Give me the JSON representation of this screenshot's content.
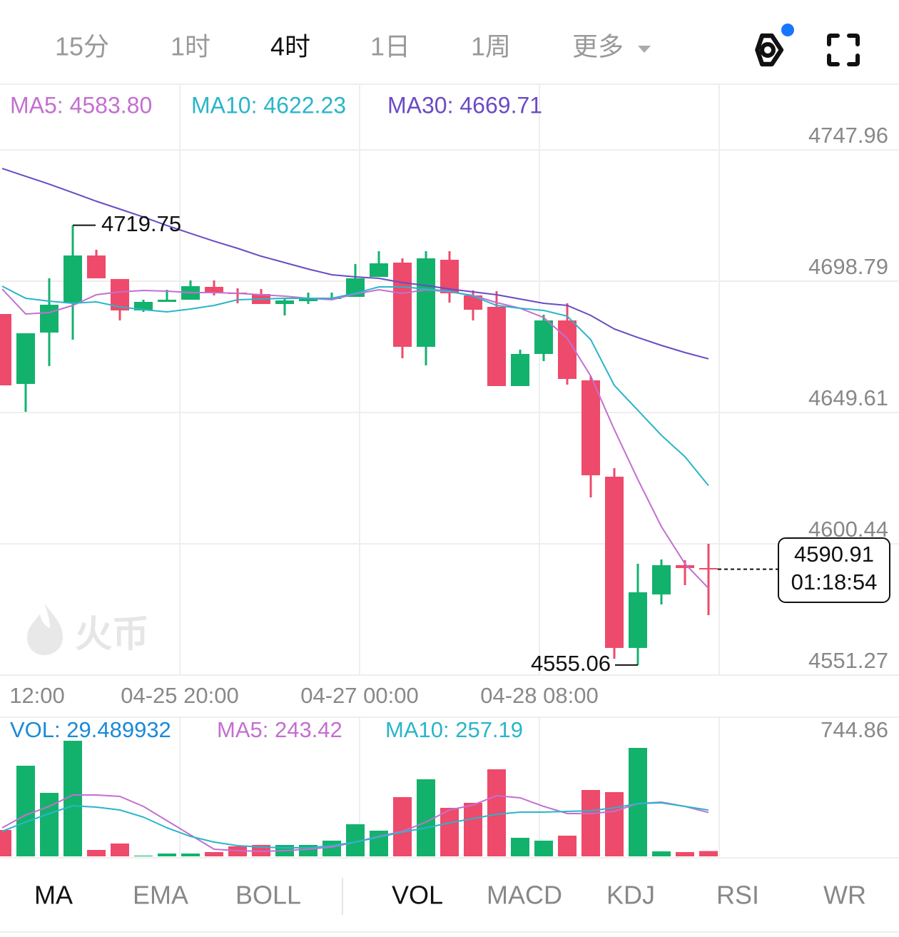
{
  "tabs": [
    {
      "label": "15分",
      "active": false
    },
    {
      "label": "1时",
      "active": false
    },
    {
      "label": "4时",
      "active": true
    },
    {
      "label": "1日",
      "active": false
    },
    {
      "label": "1周",
      "active": false
    },
    {
      "label": "更多",
      "active": false
    }
  ],
  "chart_data": [
    {
      "type": "candlestick",
      "up_color": "#12b26d",
      "down_color": "#ee4a6b",
      "grid": true,
      "ylim": [
        4551.27,
        4772.55
      ],
      "yticks": [
        4747.96,
        4698.79,
        4649.61,
        4600.44,
        4551.27
      ],
      "xtick_labels": [
        "12:00",
        "04-25 20:00",
        "04-27 00:00",
        "04-28 08:00"
      ],
      "watermark": "火币",
      "countdown": "01:18:54",
      "open": [
        4686.5,
        4660.31,
        4679.55,
        4690.77,
        4708.41,
        4699.59,
        4687.83,
        4691.04,
        4691.84,
        4696.65,
        4694.51,
        4693.98,
        4690.24,
        4691.31,
        4692.11,
        4692.91,
        4700.39,
        4705.74,
        4674.21,
        4706.81,
        4693.45,
        4689.17,
        4659.51,
        4671.53,
        4684.09,
        4661.65,
        4625.57,
        4561.44,
        4581.48,
        4592.43,
        4591.36
      ],
      "high": [
        4686.5,
        4679.28,
        4699.86,
        4719.75,
        4710.55,
        4699.59,
        4691.84,
        4695.58,
        4699.06,
        4699.06,
        4696.12,
        4695.85,
        4692.38,
        4694.51,
        4694.51,
        4705.2,
        4710.01,
        4707.34,
        4710.01,
        4710.01,
        4695.32,
        4695.05,
        4673.14,
        4686.23,
        4690.51,
        4663.25,
        4628.77,
        4592.97,
        4594.57,
        4594.3,
        4600.45
      ],
      "low": [
        4659.77,
        4649.89,
        4666.99,
        4676.88,
        4699.86,
        4684.09,
        4687.3,
        4691.04,
        4691.84,
        4693.45,
        4690.51,
        4690.24,
        4685.96,
        4690.24,
        4691.58,
        4692.91,
        4700.39,
        4669.93,
        4667.26,
        4690.77,
        4684.09,
        4659.51,
        4659.51,
        4668.86,
        4660.04,
        4617.82,
        4557.43,
        4555.06,
        4577.74,
        4584.95,
        4573.73
      ],
      "close": [
        4659.77,
        4679.28,
        4689.97,
        4708.41,
        4699.86,
        4687.83,
        4691.04,
        4691.84,
        4696.92,
        4694.51,
        4693.98,
        4690.24,
        4691.58,
        4692.11,
        4692.64,
        4699.86,
        4705.47,
        4674.21,
        4707.34,
        4694.25,
        4688.1,
        4659.51,
        4671.53,
        4684.09,
        4662.18,
        4626.1,
        4561.44,
        4582.28,
        4592.43,
        4591.36,
        4590.91
      ],
      "series": [
        {
          "name": "MA5: 4583.80",
          "color": "#c46fd0",
          "values": [
            4695.85,
            4686.5,
            4687.03,
            4689.7,
            4693.71,
            4694.78,
            4695.32,
            4695.05,
            4694.51,
            4694.51,
            4694.25,
            4693.71,
            4693.18,
            4692.38,
            4691.84,
            4693.98,
            4695.58,
            4694.25,
            4695.58,
            4694.78,
            4693.45,
            4690.77,
            4688.64,
            4685.16,
            4677.41,
            4663.25,
            4643.21,
            4624.5,
            4606.86,
            4592.97,
            4583.8
          ]
        },
        {
          "name": "MA10: 4622.23",
          "color": "#2ab5c9",
          "values": [
            4696.92,
            4692.38,
            4691.31,
            4690.51,
            4691.04,
            4689.17,
            4688.1,
            4687.3,
            4688.37,
            4689.7,
            4691.84,
            4692.11,
            4692.38,
            4692.38,
            4692.38,
            4694.25,
            4696.65,
            4696.65,
            4695.85,
            4695.05,
            4693.18,
            4689.7,
            4688.64,
            4687.83,
            4685.7,
            4676.88,
            4659.77,
            4650.42,
            4641.07,
            4633.05,
            4622.23
          ]
        },
        {
          "name": "MA30: 4669.71",
          "color": "#6a4bc4",
          "values": [
            4741.01,
            4738.07,
            4735.13,
            4731.93,
            4728.72,
            4725.78,
            4722.84,
            4719.63,
            4716.69,
            4713.76,
            4711.08,
            4708.14,
            4705.74,
            4703.33,
            4701.2,
            4700.39,
            4699.86,
            4698.26,
            4697.19,
            4695.85,
            4694.78,
            4693.71,
            4692.11,
            4690.51,
            4689.7,
            4685.96,
            4680.89,
            4677.68,
            4674.74,
            4672.07,
            4669.71
          ]
        }
      ]
    },
    {
      "type": "bar",
      "name": "VOL: 29.489932",
      "color": "#1a8ad8",
      "ylim": [
        0,
        744.86
      ],
      "yticks": [
        744.86
      ],
      "values": [
        146.6,
        503.2,
        352.6,
        641.8,
        35.7,
        71.3,
        4.0,
        15.8,
        15.8,
        23.8,
        55.5,
        63.4,
        63.4,
        63.4,
        87.2,
        178.3,
        142.6,
        328.8,
        427.9,
        269.4,
        297.2,
        483.4,
        103.0,
        87.2,
        114.9,
        368.5,
        356.6,
        602.2,
        27.7,
        23.8,
        29.489932
      ],
      "series": [
        {
          "name": "MA5: 243.42",
          "color": "#c46fd0",
          "values": [
            158.5,
            229.8,
            277.3,
            340.7,
            340.7,
            332.8,
            277.3,
            198.1,
            118.9,
            39.6,
            31.7,
            27.7,
            31.7,
            39.6,
            51.5,
            79.2,
            110.9,
            138.7,
            190.2,
            257.5,
            285.3,
            336.8,
            324.9,
            277.3,
            237.7,
            237.7,
            249.6,
            293.2,
            301.1,
            277.3,
            243.42
          ]
        },
        {
          "name": "MA10: 257.19",
          "color": "#2ab5c9",
          "values": [
            138.7,
            190.2,
            237.7,
            281.3,
            273.4,
            257.5,
            217.9,
            158.5,
            110.9,
            79.2,
            59.4,
            51.5,
            47.5,
            47.5,
            59.4,
            79.2,
            107.0,
            134.7,
            158.5,
            186.2,
            210.0,
            233.8,
            245.6,
            245.6,
            249.6,
            253.6,
            269.4,
            293.2,
            297.2,
            277.3,
            257.19
          ]
        }
      ]
    }
  ],
  "indicator_tabs": [
    {
      "label": "MA",
      "active": true
    },
    {
      "label": "EMA",
      "active": false
    },
    {
      "label": "BOLL",
      "active": false
    },
    {
      "label": "VOL",
      "active": true
    },
    {
      "label": "MACD",
      "active": false
    },
    {
      "label": "KDJ",
      "active": false
    },
    {
      "label": "RSI",
      "active": false
    },
    {
      "label": "WR",
      "active": false
    }
  ]
}
